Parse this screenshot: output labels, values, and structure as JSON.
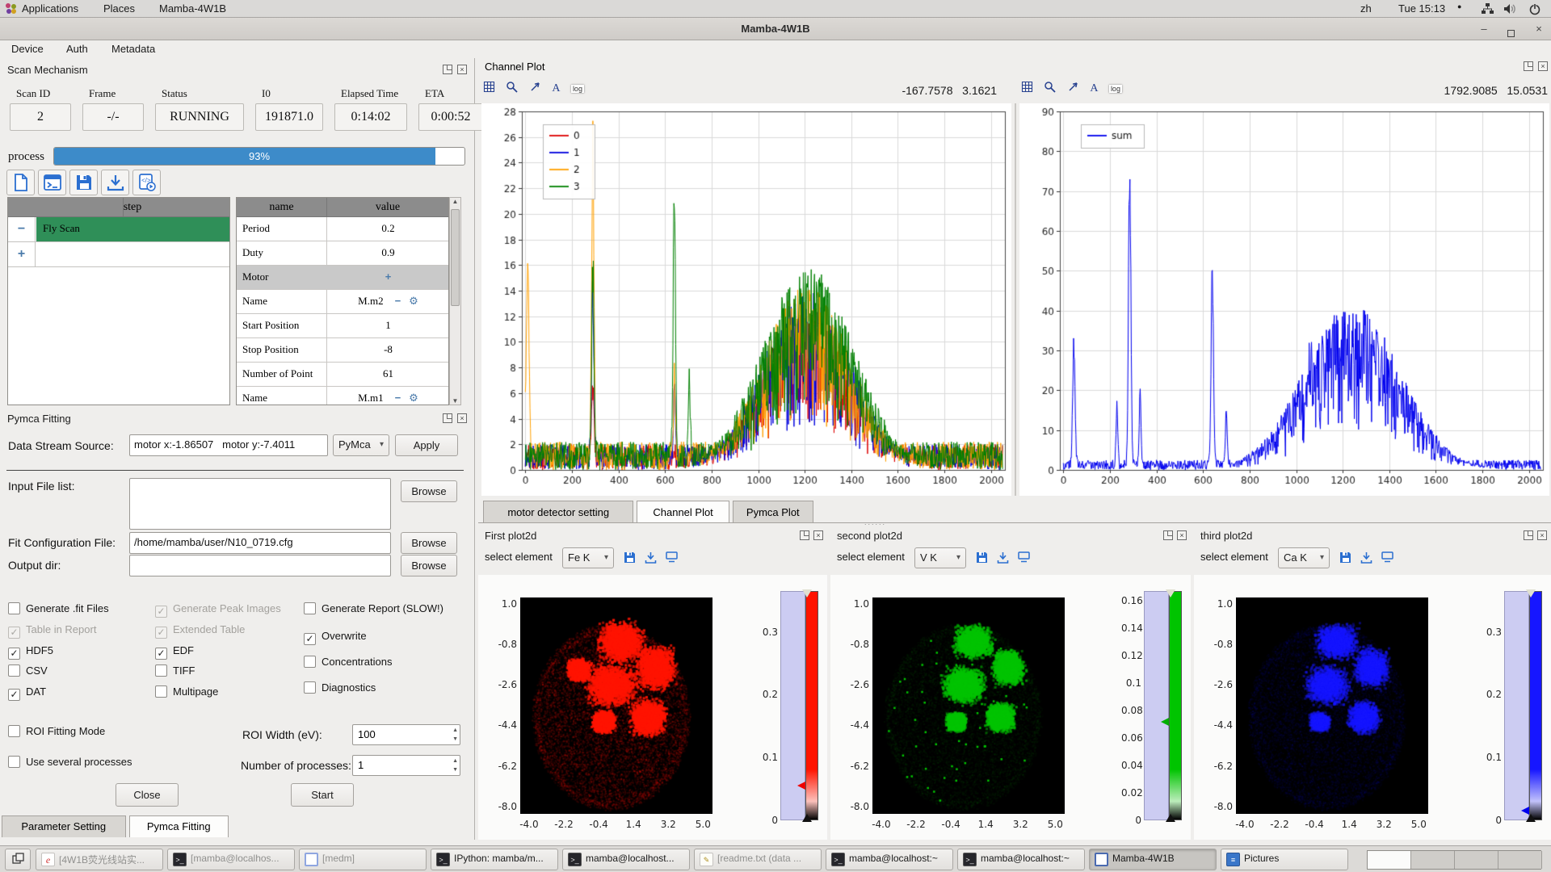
{
  "topbar": {
    "menus": [
      "Applications",
      "Places",
      "Mamba-4W1B"
    ],
    "lang": "zh",
    "clock": "Tue 15:13"
  },
  "window": {
    "title": "Mamba-4W1B",
    "menu": [
      "Device",
      "Auth",
      "Metadata"
    ]
  },
  "scan": {
    "title": "Scan Mechanism",
    "status_fields": [
      {
        "label": "Scan ID",
        "value": "2"
      },
      {
        "label": "Frame",
        "value": "-/-"
      },
      {
        "label": "Status",
        "value": "RUNNING"
      },
      {
        "label": "I0",
        "value": "191871.0"
      },
      {
        "label": "Elapsed Time",
        "value": "0:14:02"
      },
      {
        "label": "ETA",
        "value": "0:00:52"
      }
    ],
    "process_label": "process",
    "progress_percent": 93,
    "progress_text": "93%",
    "toolbar_icons": [
      "new-file",
      "console",
      "save",
      "download",
      "run-script"
    ],
    "step_table": {
      "header": "step",
      "rows": [
        {
          "action": "remove",
          "label": "Fly Scan",
          "selected": true
        },
        {
          "action": "add",
          "label": "",
          "selected": false
        }
      ]
    },
    "param_table": {
      "headers": [
        "name",
        "value"
      ],
      "rows": [
        {
          "name": "Period",
          "value": "0.2",
          "type": "text"
        },
        {
          "name": "Duty",
          "value": "0.9",
          "type": "text"
        },
        {
          "name": "Motor",
          "value": "+",
          "type": "group"
        },
        {
          "name": "Name",
          "value": "M.m2",
          "type": "device"
        },
        {
          "name": "Start Position",
          "value": "1",
          "type": "text"
        },
        {
          "name": "Stop Position",
          "value": "-8",
          "type": "text"
        },
        {
          "name": "Number of Point",
          "value": "61",
          "type": "text"
        },
        {
          "name": "Name",
          "value": "M.m1",
          "type": "device"
        }
      ]
    }
  },
  "pymca": {
    "title": "Pymca Fitting",
    "data_stream_label": "Data Stream Source:",
    "data_stream_value": "motor x:-1.86507   motor y:-7.4011",
    "engine": "PyMca",
    "apply": "Apply",
    "input_file_label": "Input File list:",
    "input_file_value": "",
    "fit_config_label": "Fit Configuration File:",
    "fit_config_value": "/home/mamba/user/N10_0719.cfg",
    "output_dir_label": "Output dir:",
    "output_dir_value": "",
    "browse": "Browse",
    "checkbox_columns": [
      [
        {
          "label": "Generate .fit Files",
          "checked": false,
          "disabled": false
        },
        {
          "label": "Table in Report",
          "checked": true,
          "disabled": true
        },
        {
          "label": "HDF5",
          "checked": true,
          "disabled": false
        },
        {
          "label": "CSV",
          "checked": false,
          "disabled": false
        },
        {
          "label": "DAT",
          "checked": true,
          "disabled": false
        }
      ],
      [
        {
          "label": "Generate Peak Images",
          "checked": true,
          "disabled": true
        },
        {
          "label": "Extended Table",
          "checked": true,
          "disabled": true
        },
        {
          "label": "EDF",
          "checked": true,
          "disabled": false
        },
        {
          "label": "TIFF",
          "checked": false,
          "disabled": false
        },
        {
          "label": "Multipage",
          "checked": false,
          "disabled": false
        }
      ],
      [
        {
          "label": "Generate Report (SLOW!)",
          "checked": false,
          "disabled": false
        },
        {
          "label": "Overwrite",
          "checked": true,
          "disabled": false
        },
        {
          "label": "Concentrations",
          "checked": false,
          "disabled": false
        },
        {
          "label": "Diagnostics",
          "checked": false,
          "disabled": false
        }
      ]
    ],
    "roi_mode_label": "ROI Fitting Mode",
    "several_proc_label": "Use several processes",
    "roi_width_label": "ROI Width (eV):",
    "roi_width_value": "100",
    "nproc_label": "Number of processes:",
    "nproc_value": "1",
    "close": "Close",
    "start": "Start",
    "bottom_tabs": [
      {
        "label": "Parameter Setting",
        "active": false
      },
      {
        "label": "Pymca Fitting",
        "active": true
      }
    ]
  },
  "channel": {
    "title": "Channel Plot",
    "panels": [
      {
        "coord_x": "-167.7578",
        "coord_y": "3.1621"
      },
      {
        "coord_x": "1792.9085",
        "coord_y": "15.0531"
      }
    ],
    "tabs": [
      {
        "label": "motor detector setting",
        "active": false
      },
      {
        "label": "Channel Plot",
        "active": true
      },
      {
        "label": "Pymca Plot",
        "active": false
      }
    ]
  },
  "plot2d": {
    "select_label": "select element",
    "docks": [
      {
        "title": "First plot2d",
        "element": "Fe K"
      },
      {
        "title": "second plot2d",
        "element": "V K"
      },
      {
        "title": "third plot2d",
        "element": "Ca K"
      }
    ]
  },
  "taskbar": {
    "buttons": [
      {
        "label": "[4W1B荧光线站实...",
        "icon": "wps",
        "dim": true,
        "active": false
      },
      {
        "label": "[mamba@localhos...",
        "icon": "terminal",
        "dim": true,
        "active": false
      },
      {
        "label": "[medm]",
        "icon": "medm",
        "dim": true,
        "active": false
      },
      {
        "label": "IPython: mamba/m...",
        "icon": "terminal",
        "dim": false,
        "active": false
      },
      {
        "label": "mamba@localhost...",
        "icon": "terminal",
        "dim": false,
        "active": false
      },
      {
        "label": "[readme.txt (data ...",
        "icon": "editor",
        "dim": true,
        "active": false
      },
      {
        "label": "mamba@localhost:~",
        "icon": "terminal",
        "dim": false,
        "active": false
      },
      {
        "label": "mamba@localhost:~",
        "icon": "terminal",
        "dim": false,
        "active": false
      },
      {
        "label": "Mamba-4W1B",
        "icon": "mamba",
        "dim": false,
        "active": true
      },
      {
        "label": "Pictures",
        "icon": "drawer",
        "dim": false,
        "active": false
      }
    ],
    "workspaces": 4,
    "active_workspace": 0
  },
  "chart_data": [
    {
      "id": "channel_left",
      "type": "line",
      "title": "",
      "xlim": [
        -15,
        2060
      ],
      "ylim": [
        0,
        28
      ],
      "xticks": [
        0,
        200,
        400,
        600,
        800,
        1000,
        1200,
        1400,
        1600,
        1800,
        2000
      ],
      "yticks": [
        0,
        2,
        4,
        6,
        8,
        10,
        12,
        14,
        16,
        18,
        20,
        22,
        24,
        26,
        28
      ],
      "grid": true,
      "legend_position": "upper-left",
      "series": [
        {
          "name": "0",
          "color": "#dd0000",
          "noise": 2.0,
          "seed": 101,
          "hump": {
            "center": 1210,
            "sigma": 190,
            "peak": 13.0
          },
          "peaks": [
            {
              "x": 290,
              "h": 7,
              "w": 5
            }
          ]
        },
        {
          "name": "1",
          "color": "#0000dd",
          "noise": 2.0,
          "seed": 202,
          "hump": {
            "center": 1210,
            "sigma": 190,
            "peak": 14.0
          },
          "peaks": [
            {
              "x": 290,
              "h": 14,
              "w": 5
            },
            {
              "x": 640,
              "h": 6,
              "w": 4
            }
          ]
        },
        {
          "name": "2",
          "color": "#ffa000",
          "noise": 2.2,
          "seed": 303,
          "hump": {
            "center": 1210,
            "sigma": 190,
            "peak": 14.5
          },
          "peaks": [
            {
              "x": 10,
              "h": 17,
              "w": 6
            },
            {
              "x": 290,
              "h": 26,
              "w": 5
            },
            {
              "x": 640,
              "h": 7,
              "w": 4
            }
          ]
        },
        {
          "name": "3",
          "color": "#008000",
          "noise": 2.2,
          "seed": 404,
          "hump": {
            "center": 1215,
            "sigma": 195,
            "peak": 16.0
          },
          "peaks": [
            {
              "x": 290,
              "h": 16,
              "w": 5
            },
            {
              "x": 640,
              "h": 23,
              "w": 5
            },
            {
              "x": 705,
              "h": 6,
              "w": 4
            }
          ]
        }
      ]
    },
    {
      "id": "channel_sum",
      "type": "line",
      "title": "",
      "xlim": [
        -15,
        2060
      ],
      "ylim": [
        0,
        90
      ],
      "xticks": [
        0,
        200,
        400,
        600,
        800,
        1000,
        1200,
        1400,
        1600,
        1800,
        2000
      ],
      "yticks": [
        0,
        10,
        20,
        30,
        40,
        50,
        60,
        70,
        80,
        90
      ],
      "grid": true,
      "legend_position": "upper-left",
      "series": [
        {
          "name": "sum",
          "color": "#0000ee",
          "noise": 2.5,
          "seed": 777,
          "hump": {
            "center": 1240,
            "sigma": 205,
            "peak": 42
          },
          "peaks": [
            {
              "x": 45,
              "h": 36,
              "w": 5
            },
            {
              "x": 230,
              "h": 17,
              "w": 4
            },
            {
              "x": 285,
              "h": 84,
              "w": 5
            },
            {
              "x": 330,
              "h": 20,
              "w": 4
            },
            {
              "x": 640,
              "h": 53,
              "w": 5
            },
            {
              "x": 700,
              "h": 14,
              "w": 4
            },
            {
              "x": 1060,
              "h": 8,
              "w": 5
            }
          ]
        }
      ]
    },
    {
      "id": "plot2d_fe",
      "type": "heatmap",
      "element": "Fe K",
      "color": "#ff1400",
      "seed": 11,
      "xticks": [
        -4.0,
        -2.2,
        -0.4,
        1.4,
        3.2,
        5.0
      ],
      "yticks": [
        1.0,
        -0.8,
        -2.6,
        -4.4,
        -6.2,
        -8.0
      ],
      "intensity": {
        "body": 0.22,
        "blob": 0.95,
        "bright_dots": 0
      },
      "body": {
        "cx": 0.47,
        "cy": 0.55,
        "rx": 0.4,
        "ry": 0.42
      },
      "blobs": [
        {
          "cx": 0.52,
          "cy": 0.2,
          "rx": 0.14,
          "ry": 0.11
        },
        {
          "cx": 0.7,
          "cy": 0.32,
          "rx": 0.12,
          "ry": 0.12
        },
        {
          "cx": 0.47,
          "cy": 0.4,
          "rx": 0.16,
          "ry": 0.12
        },
        {
          "cx": 0.66,
          "cy": 0.55,
          "rx": 0.11,
          "ry": 0.1
        },
        {
          "cx": 0.43,
          "cy": 0.57,
          "rx": 0.07,
          "ry": 0.06
        },
        {
          "cx": 0.3,
          "cy": 0.33,
          "rx": 0.07,
          "ry": 0.06
        }
      ],
      "colorbar": {
        "ticks": [
          0,
          0.1,
          0.2,
          0.3
        ],
        "vmax": 0.365,
        "arrow_value": 0.055,
        "arrow_color": "#ee0000"
      }
    },
    {
      "id": "plot2d_v",
      "type": "heatmap",
      "element": "V K",
      "color": "#00c400",
      "seed": 22,
      "xticks": [
        -4.0,
        -2.2,
        -0.4,
        1.4,
        3.2,
        5.0
      ],
      "yticks": [
        1.0,
        -0.8,
        -2.6,
        -4.4,
        -6.2,
        -8.0
      ],
      "intensity": {
        "body": 0.07,
        "blob": 0.8,
        "bright_dots": 55
      },
      "body": {
        "cx": 0.47,
        "cy": 0.55,
        "rx": 0.4,
        "ry": 0.42
      },
      "blobs": [
        {
          "cx": 0.52,
          "cy": 0.2,
          "rx": 0.12,
          "ry": 0.09
        },
        {
          "cx": 0.7,
          "cy": 0.32,
          "rx": 0.1,
          "ry": 0.1
        },
        {
          "cx": 0.47,
          "cy": 0.4,
          "rx": 0.13,
          "ry": 0.1
        },
        {
          "cx": 0.66,
          "cy": 0.55,
          "rx": 0.09,
          "ry": 0.08
        },
        {
          "cx": 0.43,
          "cy": 0.57,
          "rx": 0.06,
          "ry": 0.05
        }
      ],
      "colorbar": {
        "ticks": [
          0,
          0.02,
          0.04,
          0.06,
          0.08,
          0.1,
          0.12,
          0.14,
          0.16
        ],
        "vmax": 0.167,
        "arrow_value": 0.072,
        "arrow_color": "#00ae00"
      }
    },
    {
      "id": "plot2d_ca",
      "type": "heatmap",
      "element": "Ca K",
      "color": "#1616ff",
      "seed": 33,
      "xticks": [
        -4.0,
        -2.2,
        -0.4,
        1.4,
        3.2,
        5.0
      ],
      "yticks": [
        1.0,
        -0.8,
        -2.6,
        -4.4,
        -6.2,
        -8.0
      ],
      "intensity": {
        "body": 0.1,
        "blob": 0.55,
        "bright_dots": 0
      },
      "body": {
        "cx": 0.47,
        "cy": 0.55,
        "rx": 0.4,
        "ry": 0.42
      },
      "blobs": [
        {
          "cx": 0.52,
          "cy": 0.2,
          "rx": 0.13,
          "ry": 0.1
        },
        {
          "cx": 0.7,
          "cy": 0.32,
          "rx": 0.11,
          "ry": 0.11
        },
        {
          "cx": 0.47,
          "cy": 0.4,
          "rx": 0.14,
          "ry": 0.11
        },
        {
          "cx": 0.66,
          "cy": 0.55,
          "rx": 0.1,
          "ry": 0.09
        },
        {
          "cx": 0.43,
          "cy": 0.57,
          "rx": 0.06,
          "ry": 0.05
        }
      ],
      "colorbar": {
        "ticks": [
          0,
          0.1,
          0.2,
          0.3
        ],
        "vmax": 0.365,
        "arrow_value": 0.015,
        "arrow_color": "#0000ee"
      }
    }
  ]
}
